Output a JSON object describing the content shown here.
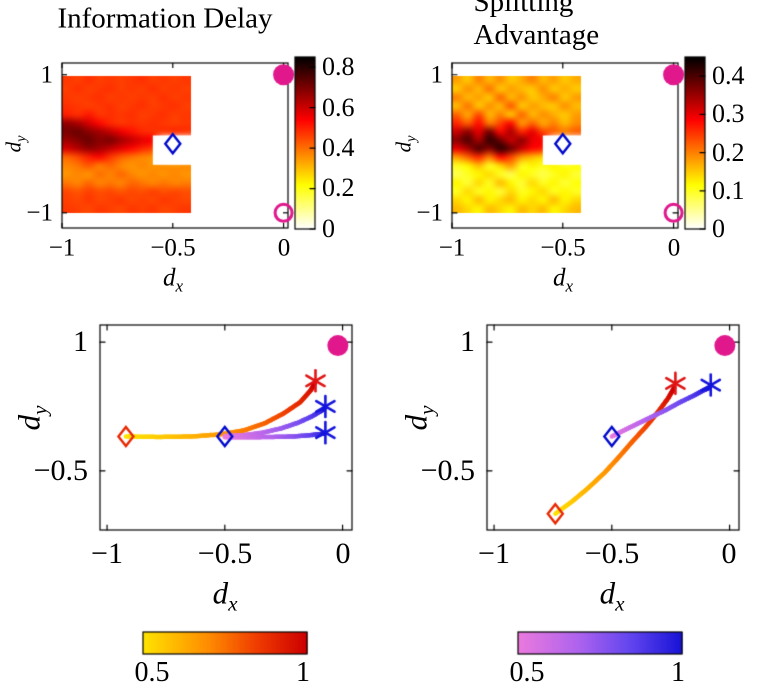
{
  "titles": {
    "left": "Information Delay",
    "right": "Splitting Advantage"
  },
  "colors": {
    "magenta": "#e0188c",
    "blue_marker": "#0008cc",
    "red_marker": "#e82800",
    "red_star": "#e01414",
    "blue_star": "#1414dd",
    "heat_low": "#ffffff",
    "heat_high": "#000000"
  },
  "chart_data": [
    {
      "id": "information-delay-heatmap",
      "type": "heatmap",
      "title": "Information Delay",
      "xlabel": {
        "base": "d",
        "sub": "x"
      },
      "ylabel": {
        "base": "d",
        "sub": "y"
      },
      "xticks": [
        "−1",
        "−0.5",
        "0"
      ],
      "xtick_values": [
        -1,
        -0.5,
        0
      ],
      "yticks": [
        "1",
        "−1"
      ],
      "ytick_values": [
        1,
        -1
      ],
      "xlim": [
        -1,
        0.02
      ],
      "ylim": [
        -1.22,
        1.17
      ],
      "vmax": 0.85,
      "extent": {
        "x0": -1,
        "x1": -0.42,
        "y0": -1,
        "y1": 0.98
      },
      "notch": {
        "x0": -0.59,
        "x1": -0.42,
        "y0": -0.29,
        "y1": 0.12
      },
      "colorbar": {
        "ticks": [
          "0",
          "0.2",
          "0.4",
          "0.6",
          "0.8"
        ],
        "tick_values": [
          0,
          0.2,
          0.4,
          0.6,
          0.8
        ],
        "vmin": 0,
        "vmax": 0.85
      },
      "values": [
        [
          0.47,
          0.46,
          0.48,
          0.46,
          0.47,
          0.46,
          0.47,
          0.48,
          0.46,
          0.47,
          0.46,
          0.47
        ],
        [
          0.46,
          0.48,
          0.46,
          0.47,
          0.48,
          0.46,
          0.47,
          0.46,
          0.48,
          0.46,
          0.47,
          0.46
        ],
        [
          0.47,
          0.46,
          0.47,
          0.48,
          0.46,
          0.47,
          0.46,
          0.47,
          0.46,
          0.48,
          0.46,
          0.47
        ],
        [
          0.48,
          0.47,
          0.46,
          0.47,
          0.48,
          0.46,
          0.47,
          0.48,
          0.46,
          0.47,
          0.48,
          0.46
        ],
        [
          0.5,
          0.48,
          0.51,
          0.47,
          0.48,
          0.47,
          0.48,
          0.46,
          0.47,
          0.48,
          0.46,
          0.47
        ],
        [
          0.67,
          0.64,
          0.59,
          0.53,
          0.49,
          0.47,
          0.48,
          0.47,
          0.48,
          0.47,
          0.46,
          0.47
        ],
        [
          0.7,
          0.72,
          0.68,
          0.65,
          0.61,
          0.56,
          0.52,
          0.49,
          0.48,
          0.47,
          0.48,
          0.47
        ],
        [
          0.66,
          0.69,
          0.72,
          0.68,
          0.7,
          0.65,
          0.61,
          0.57,
          0.53,
          null,
          null,
          null
        ],
        [
          0.59,
          0.63,
          0.67,
          0.65,
          0.61,
          0.57,
          0.53,
          0.49,
          0.45,
          null,
          null,
          null
        ],
        [
          0.41,
          0.45,
          0.5,
          0.53,
          0.47,
          0.42,
          0.39,
          0.37,
          0.35,
          null,
          null,
          null
        ],
        [
          0.37,
          0.39,
          0.43,
          0.38,
          0.41,
          0.37,
          0.35,
          0.37,
          0.35,
          0.36,
          0.35,
          0.36
        ],
        [
          0.35,
          0.37,
          0.35,
          0.4,
          0.37,
          0.41,
          0.37,
          0.35,
          0.37,
          0.35,
          0.37,
          0.35
        ],
        [
          0.39,
          0.37,
          0.41,
          0.37,
          0.39,
          0.37,
          0.41,
          0.39,
          0.37,
          0.39,
          0.37,
          0.38
        ],
        [
          0.45,
          0.43,
          0.46,
          0.44,
          0.45,
          0.43,
          0.45,
          0.44,
          0.46,
          0.44,
          0.45,
          0.44
        ],
        [
          0.46,
          0.45,
          0.47,
          0.45,
          0.46,
          0.47,
          0.45,
          0.46,
          0.45,
          0.47,
          0.46,
          0.45
        ],
        [
          0.47,
          0.46,
          0.45,
          0.47,
          0.46,
          0.45,
          0.47,
          0.46,
          0.47,
          0.45,
          0.46,
          0.47
        ]
      ],
      "markers": [
        {
          "shape": "circle-filled",
          "x": 0,
          "y": 1,
          "color": "#e0188c"
        },
        {
          "shape": "diamond-open",
          "x": -0.5,
          "y": 0,
          "color": "#0008cc"
        },
        {
          "shape": "circle-open",
          "x": 0,
          "y": -1,
          "color": "#e0188c"
        }
      ]
    },
    {
      "id": "splitting-advantage-heatmap",
      "type": "heatmap",
      "title": "Splitting Advantage",
      "xlabel": {
        "base": "d",
        "sub": "x"
      },
      "ylabel": {
        "base": "d",
        "sub": "y"
      },
      "xticks": [
        "−1",
        "−0.5",
        "0"
      ],
      "xtick_values": [
        -1,
        -0.5,
        0
      ],
      "yticks": [
        "1",
        "−1"
      ],
      "ytick_values": [
        1,
        -1
      ],
      "xlim": [
        -1,
        0.02
      ],
      "ylim": [
        -1.22,
        1.17
      ],
      "vmax": 0.45,
      "extent": {
        "x0": -1,
        "x1": -0.42,
        "y0": -1,
        "y1": 0.98
      },
      "notch": {
        "x0": -0.59,
        "x1": -0.42,
        "y0": -0.29,
        "y1": 0.12
      },
      "colorbar": {
        "ticks": [
          "0",
          "0.1",
          "0.2",
          "0.3",
          "0.4"
        ],
        "tick_values": [
          0,
          0.1,
          0.2,
          0.3,
          0.4
        ],
        "vmin": 0,
        "vmax": 0.45
      },
      "values": [
        [
          0.18,
          0.15,
          0.2,
          0.16,
          0.19,
          0.15,
          0.17,
          0.2,
          0.16,
          0.18,
          0.15,
          0.17
        ],
        [
          0.15,
          0.19,
          0.16,
          0.21,
          0.15,
          0.18,
          0.16,
          0.15,
          0.19,
          0.15,
          0.17,
          0.15
        ],
        [
          0.2,
          0.16,
          0.18,
          0.15,
          0.22,
          0.16,
          0.19,
          0.15,
          0.17,
          0.2,
          0.15,
          0.18
        ],
        [
          0.16,
          0.21,
          0.15,
          0.19,
          0.16,
          0.23,
          0.15,
          0.18,
          0.16,
          0.15,
          0.19,
          0.16
        ],
        [
          0.22,
          0.17,
          0.24,
          0.16,
          0.2,
          0.15,
          0.22,
          0.16,
          0.19,
          0.17,
          0.15,
          0.18
        ],
        [
          0.26,
          0.22,
          0.28,
          0.2,
          0.24,
          0.28,
          0.18,
          0.22,
          0.17,
          0.2,
          0.16,
          0.19
        ],
        [
          0.32,
          0.36,
          0.3,
          0.38,
          0.28,
          0.34,
          0.26,
          0.3,
          0.24,
          0.22,
          0.2,
          0.22
        ],
        [
          0.36,
          0.4,
          0.34,
          0.42,
          0.38,
          0.32,
          0.36,
          0.3,
          0.28,
          null,
          null,
          null
        ],
        [
          0.3,
          0.34,
          0.4,
          0.36,
          0.42,
          0.38,
          0.32,
          0.28,
          0.26,
          null,
          null,
          null
        ],
        [
          0.18,
          0.22,
          0.26,
          0.2,
          0.28,
          0.24,
          0.18,
          0.16,
          0.14,
          null,
          null,
          null
        ],
        [
          0.1,
          0.12,
          0.16,
          0.1,
          0.14,
          0.18,
          0.1,
          0.12,
          0.1,
          0.12,
          0.1,
          0.11
        ],
        [
          0.08,
          0.1,
          0.12,
          0.14,
          0.1,
          0.08,
          0.12,
          0.1,
          0.08,
          0.1,
          0.12,
          0.09
        ],
        [
          0.12,
          0.09,
          0.14,
          0.1,
          0.16,
          0.12,
          0.09,
          0.14,
          0.1,
          0.12,
          0.09,
          0.11
        ],
        [
          0.1,
          0.14,
          0.1,
          0.12,
          0.09,
          0.14,
          0.1,
          0.12,
          0.14,
          0.1,
          0.12,
          0.1
        ],
        [
          0.14,
          0.12,
          0.16,
          0.12,
          0.14,
          0.16,
          0.12,
          0.14,
          0.12,
          0.16,
          0.12,
          0.14
        ],
        [
          0.16,
          0.14,
          0.12,
          0.16,
          0.14,
          0.12,
          0.16,
          0.14,
          0.16,
          0.12,
          0.14,
          0.16
        ]
      ],
      "markers": [
        {
          "shape": "circle-filled",
          "x": 0,
          "y": 1,
          "color": "#e0188c"
        },
        {
          "shape": "diamond-open",
          "x": -0.5,
          "y": 0,
          "color": "#0008cc"
        },
        {
          "shape": "circle-open",
          "x": 0,
          "y": -1,
          "color": "#e0188c"
        }
      ]
    },
    {
      "id": "trajectories-information-delay",
      "type": "line",
      "xlabel": {
        "base": "d",
        "sub": "x"
      },
      "ylabel": {
        "base": "d",
        "sub": "y"
      },
      "xticks": [
        "−1",
        "−0.5",
        "0"
      ],
      "xtick_values": [
        -1,
        -0.5,
        0
      ],
      "yticks": [
        "1",
        "−0.5"
      ],
      "ytick_values": [
        1,
        -0.5
      ],
      "xlim": [
        -1.03,
        0.04
      ],
      "ylim": [
        -1.19,
        1.2
      ],
      "trajectories": [
        {
          "cmap": "yellow-red",
          "points": [
            [
              -0.92,
              -0.1
            ],
            [
              -0.78,
              -0.105
            ],
            [
              -0.64,
              -0.1
            ],
            [
              -0.52,
              -0.075
            ],
            [
              -0.42,
              -0.03
            ],
            [
              -0.33,
              0.055
            ],
            [
              -0.25,
              0.17
            ],
            [
              -0.18,
              0.3
            ],
            [
              -0.135,
              0.44
            ],
            [
              -0.118,
              0.52
            ]
          ]
        },
        {
          "cmap": "violet-blue",
          "points": [
            [
              -0.5,
              -0.095
            ],
            [
              -0.42,
              -0.085
            ],
            [
              -0.34,
              -0.055
            ],
            [
              -0.26,
              -0.005
            ],
            [
              -0.19,
              0.06
            ],
            [
              -0.13,
              0.135
            ],
            [
              -0.09,
              0.2
            ],
            [
              -0.076,
              0.23
            ]
          ]
        },
        {
          "cmap": "violet-blue",
          "points": [
            [
              -0.5,
              -0.11
            ],
            [
              -0.4,
              -0.11
            ],
            [
              -0.3,
              -0.105
            ],
            [
              -0.21,
              -0.1
            ],
            [
              -0.14,
              -0.085
            ],
            [
              -0.09,
              -0.07
            ],
            [
              -0.076,
              -0.062
            ]
          ]
        }
      ],
      "markers": [
        {
          "shape": "circle-filled",
          "x": -0.02,
          "y": 0.96,
          "color": "#e0188c"
        },
        {
          "shape": "diamond-open",
          "x": -0.92,
          "y": -0.1,
          "color": "#e82800"
        },
        {
          "shape": "diamond-open",
          "x": -0.5,
          "y": -0.1,
          "color": "#0008cc"
        },
        {
          "shape": "star",
          "x": -0.115,
          "y": 0.55,
          "color": "#e01414"
        },
        {
          "shape": "star",
          "x": -0.073,
          "y": 0.25,
          "color": "#1414dd"
        },
        {
          "shape": "star",
          "x": -0.073,
          "y": -0.055,
          "color": "#1414dd"
        }
      ]
    },
    {
      "id": "trajectories-splitting-advantage",
      "type": "line",
      "xlabel": {
        "base": "d",
        "sub": "x"
      },
      "ylabel": {
        "base": "d",
        "sub": "y"
      },
      "xticks": [
        "−1",
        "−0.5",
        "0"
      ],
      "xtick_values": [
        -1,
        -0.5,
        0
      ],
      "yticks": [
        "1",
        "−0.5"
      ],
      "ytick_values": [
        1,
        -0.5
      ],
      "xlim": [
        -1.03,
        0.04
      ],
      "ylim": [
        -1.19,
        1.2
      ],
      "trajectories": [
        {
          "cmap": "yellow-red",
          "points": [
            [
              -0.74,
              -1.0
            ],
            [
              -0.67,
              -0.86
            ],
            [
              -0.6,
              -0.7
            ],
            [
              -0.53,
              -0.52
            ],
            [
              -0.47,
              -0.34
            ],
            [
              -0.41,
              -0.15
            ],
            [
              -0.35,
              0.03
            ],
            [
              -0.3,
              0.2
            ],
            [
              -0.26,
              0.35
            ],
            [
              -0.235,
              0.47
            ]
          ]
        },
        {
          "cmap": "violet-blue",
          "points": [
            [
              -0.5,
              -0.1
            ],
            [
              -0.45,
              -0.03
            ],
            [
              -0.39,
              0.05
            ],
            [
              -0.33,
              0.13
            ],
            [
              -0.27,
              0.21
            ],
            [
              -0.21,
              0.3
            ],
            [
              -0.15,
              0.38
            ],
            [
              -0.11,
              0.44
            ],
            [
              -0.085,
              0.47
            ]
          ]
        }
      ],
      "markers": [
        {
          "shape": "circle-filled",
          "x": -0.02,
          "y": 0.96,
          "color": "#e0188c"
        },
        {
          "shape": "diamond-open",
          "x": -0.74,
          "y": -1.0,
          "color": "#e82800"
        },
        {
          "shape": "diamond-open",
          "x": -0.5,
          "y": -0.1,
          "color": "#0008cc"
        },
        {
          "shape": "star",
          "x": -0.23,
          "y": 0.52,
          "color": "#e01414"
        },
        {
          "shape": "star",
          "x": -0.08,
          "y": 0.5,
          "color": "#1414dd"
        }
      ]
    },
    {
      "id": "trajectory-colorbar-yellow-red",
      "type": "colorbar",
      "cmap": "yellow-red",
      "domain": [
        0.5,
        1
      ],
      "ticks": [
        "0.5",
        "1"
      ]
    },
    {
      "id": "trajectory-colorbar-violet-blue",
      "type": "colorbar",
      "cmap": "violet-blue",
      "domain": [
        0.5,
        1
      ],
      "ticks": [
        "0.5",
        "1"
      ]
    }
  ]
}
